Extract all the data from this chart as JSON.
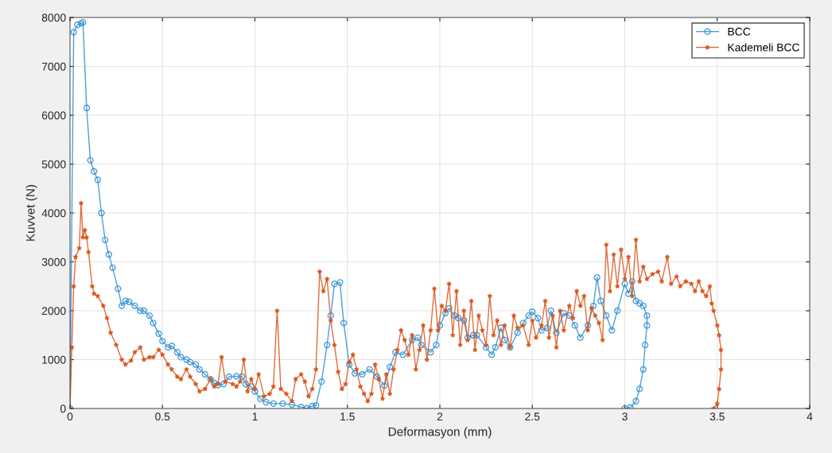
{
  "chart_data": {
    "type": "line",
    "xlabel": "Deformasyon (mm)",
    "ylabel": "Kuvvet (N)",
    "xlim": [
      0,
      4
    ],
    "ylim": [
      0,
      8000
    ],
    "xticks": [
      0,
      0.5,
      1,
      1.5,
      2,
      2.5,
      3,
      3.5,
      4
    ],
    "yticks": [
      0,
      1000,
      2000,
      3000,
      4000,
      5000,
      6000,
      7000,
      8000
    ],
    "grid": true,
    "legend": "top right",
    "series": [
      {
        "name": "BCC",
        "color": "#2f8fd3",
        "marker": "circle",
        "x": [
          0,
          0.02,
          0.04,
          0.06,
          0.07,
          0.09,
          0.11,
          0.13,
          0.15,
          0.17,
          0.19,
          0.21,
          0.23,
          0.26,
          0.28,
          0.3,
          0.32,
          0.35,
          0.38,
          0.4,
          0.43,
          0.45,
          0.48,
          0.5,
          0.53,
          0.55,
          0.58,
          0.6,
          0.63,
          0.65,
          0.68,
          0.7,
          0.73,
          0.76,
          0.78,
          0.8,
          0.83,
          0.86,
          0.9,
          0.93,
          0.95,
          0.98,
          1.0,
          1.03,
          1.06,
          1.1,
          1.15,
          1.2,
          1.25,
          1.28,
          1.31,
          1.33,
          1.36,
          1.39,
          1.41,
          1.43,
          1.46,
          1.48,
          1.51,
          1.54,
          1.58,
          1.62,
          1.66,
          1.7,
          1.73,
          1.76,
          1.8,
          1.85,
          1.88,
          1.9,
          1.95,
          1.98,
          2.0,
          2.03,
          2.05,
          2.08,
          2.1,
          2.13,
          2.15,
          2.18,
          2.2,
          2.25,
          2.28,
          2.3,
          2.33,
          2.35,
          2.38,
          2.42,
          2.45,
          2.48,
          2.5,
          2.53,
          2.55,
          2.58,
          2.6,
          2.63,
          2.67,
          2.7,
          2.73,
          2.76,
          2.8,
          2.83,
          2.85,
          2.87,
          2.9,
          2.93,
          2.96,
          3.0,
          3.02,
          3.04,
          3.06,
          3.08,
          3.1,
          3.12,
          3.12,
          3.11,
          3.1,
          3.08,
          3.06,
          3.03,
          3.0
        ],
        "values": [
          0,
          7700,
          7850,
          7880,
          7900,
          6150,
          5080,
          4850,
          4680,
          4000,
          3450,
          3150,
          2880,
          2450,
          2100,
          2200,
          2180,
          2100,
          2000,
          2000,
          1900,
          1750,
          1530,
          1380,
          1250,
          1280,
          1150,
          1050,
          1000,
          950,
          900,
          800,
          700,
          600,
          520,
          480,
          500,
          650,
          660,
          650,
          500,
          450,
          350,
          200,
          130,
          100,
          100,
          80,
          30,
          0,
          50,
          60,
          550,
          1300,
          1900,
          2550,
          2580,
          1750,
          900,
          720,
          700,
          800,
          650,
          470,
          850,
          1150,
          1100,
          1400,
          1450,
          1300,
          1150,
          1300,
          1700,
          1950,
          2050,
          1900,
          1850,
          1800,
          1450,
          1500,
          1500,
          1250,
          1100,
          1250,
          1650,
          1400,
          1250,
          1550,
          1750,
          1900,
          1980,
          1850,
          1600,
          1650,
          2000,
          1550,
          1950,
          1900,
          1700,
          1450,
          1700,
          2100,
          2680,
          2200,
          1900,
          1600,
          2000,
          2550,
          2350,
          2600,
          2200,
          2150,
          2100,
          1900,
          1700,
          1300,
          800,
          400,
          150,
          20,
          0
        ]
      },
      {
        "name": "Kademeli BCC",
        "color": "#d95319",
        "marker": "star",
        "x": [
          0,
          0.01,
          0.02,
          0.03,
          0.05,
          0.06,
          0.07,
          0.08,
          0.09,
          0.1,
          0.12,
          0.13,
          0.15,
          0.18,
          0.2,
          0.22,
          0.25,
          0.28,
          0.3,
          0.33,
          0.35,
          0.38,
          0.4,
          0.43,
          0.45,
          0.48,
          0.5,
          0.53,
          0.55,
          0.58,
          0.6,
          0.63,
          0.65,
          0.68,
          0.7,
          0.73,
          0.76,
          0.78,
          0.8,
          0.82,
          0.84,
          0.88,
          0.9,
          0.92,
          0.94,
          0.96,
          0.98,
          1.0,
          1.02,
          1.05,
          1.08,
          1.1,
          1.12,
          1.14,
          1.17,
          1.2,
          1.22,
          1.25,
          1.27,
          1.29,
          1.31,
          1.33,
          1.35,
          1.37,
          1.39,
          1.41,
          1.43,
          1.45,
          1.47,
          1.49,
          1.51,
          1.53,
          1.55,
          1.57,
          1.59,
          1.61,
          1.63,
          1.65,
          1.67,
          1.69,
          1.71,
          1.73,
          1.75,
          1.77,
          1.79,
          1.81,
          1.83,
          1.85,
          1.87,
          1.89,
          1.91,
          1.93,
          1.95,
          1.97,
          1.99,
          2.01,
          2.03,
          2.05,
          2.07,
          2.09,
          2.11,
          2.13,
          2.15,
          2.17,
          2.19,
          2.21,
          2.23,
          2.25,
          2.27,
          2.29,
          2.31,
          2.33,
          2.35,
          2.38,
          2.4,
          2.42,
          2.45,
          2.48,
          2.5,
          2.52,
          2.55,
          2.57,
          2.59,
          2.61,
          2.63,
          2.65,
          2.67,
          2.7,
          2.72,
          2.74,
          2.76,
          2.78,
          2.8,
          2.82,
          2.84,
          2.86,
          2.88,
          2.9,
          2.92,
          2.94,
          2.96,
          2.98,
          3.0,
          3.02,
          3.04,
          3.06,
          3.08,
          3.1,
          3.12,
          3.15,
          3.18,
          3.2,
          3.23,
          3.25,
          3.28,
          3.3,
          3.33,
          3.36,
          3.38,
          3.4,
          3.42,
          3.44,
          3.46,
          3.47,
          3.48,
          3.5,
          3.51,
          3.52,
          3.52,
          3.51,
          3.5,
          3.48
        ],
        "values": [
          0,
          1250,
          2500,
          3100,
          3280,
          4200,
          3500,
          3650,
          3500,
          3200,
          2500,
          2350,
          2300,
          2100,
          1850,
          1550,
          1300,
          1000,
          900,
          980,
          1150,
          1250,
          1000,
          1050,
          1050,
          1200,
          1100,
          900,
          800,
          650,
          600,
          800,
          650,
          500,
          350,
          400,
          600,
          450,
          500,
          1050,
          550,
          500,
          450,
          550,
          1000,
          350,
          600,
          400,
          700,
          250,
          300,
          450,
          2000,
          400,
          300,
          150,
          600,
          700,
          550,
          250,
          400,
          800,
          2800,
          2400,
          2650,
          1800,
          1300,
          750,
          400,
          500,
          950,
          1100,
          800,
          450,
          300,
          150,
          300,
          900,
          600,
          200,
          700,
          300,
          800,
          1200,
          1600,
          1400,
          1100,
          1500,
          800,
          1200,
          1700,
          1000,
          1600,
          2450,
          1600,
          2100,
          2000,
          2550,
          1500,
          2400,
          1300,
          2000,
          1400,
          2200,
          1200,
          1900,
          1600,
          1300,
          2300,
          1500,
          1800,
          1300,
          1700,
          1250,
          1900,
          1650,
          1700,
          1300,
          1800,
          1450,
          1700,
          2200,
          1450,
          1900,
          1250,
          2000,
          1600,
          2100,
          1850,
          2400,
          2100,
          2300,
          1600,
          2050,
          1900,
          1750,
          1400,
          3350,
          2400,
          3150,
          2500,
          3250,
          2650,
          3100,
          2300,
          3450,
          2600,
          2900,
          2650,
          2750,
          2800,
          2600,
          3100,
          2550,
          2700,
          2500,
          2600,
          2550,
          2400,
          2600,
          2400,
          2300,
          2500,
          2150,
          2000,
          1700,
          1500,
          1200,
          800,
          400,
          100,
          0
        ]
      }
    ]
  }
}
